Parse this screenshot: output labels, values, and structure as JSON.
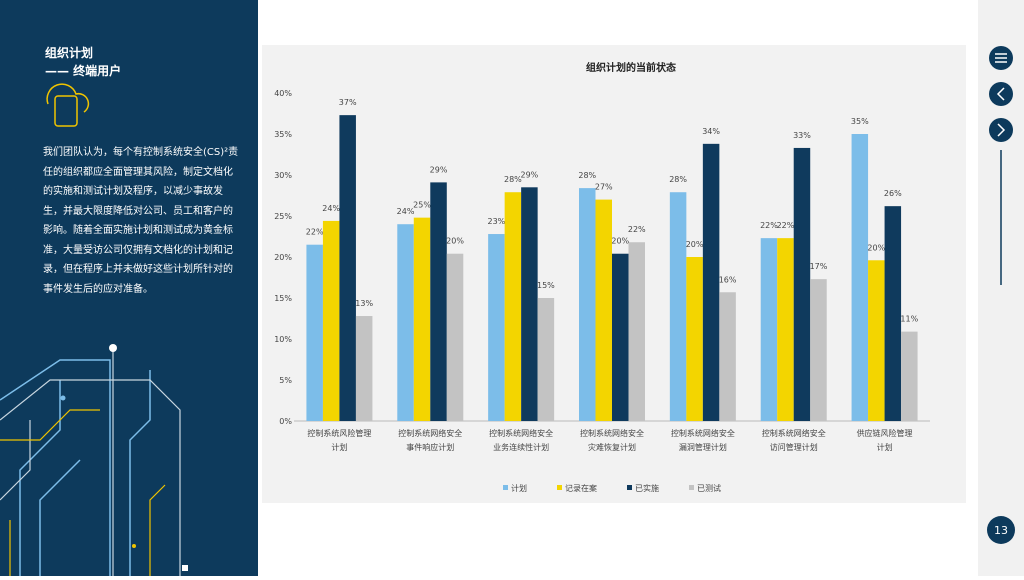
{
  "sidebar": {
    "title": "组织计划",
    "subtitle": "—— 终端用户",
    "body": "我们团队认为，每个有控制系统安全(CS)²责任的组织都应全面管理其风险，制定文档化的实施和测试计划及程序，以减少事故发生，并最大限度降低对公司、员工和客户的影响。随着全面实施计划和测试成为黄金标准，大量受访公司仅拥有文档化的计划和记录，但在程序上并未做好这些计划所针对的事件发生后的应对准备。"
  },
  "page_number": "13",
  "chart_data": {
    "type": "bar",
    "title": "组织计划的当前状态",
    "categories": [
      "控制系统风险管理\n计划",
      "控制系统网络安全\n事件响应计划",
      "控制系统网络安全\n业务连续性计划",
      "控制系统网络安全\n灾难恢复计划",
      "控制系统网络安全\n漏洞管理计划",
      "控制系统网络安全\n访问管理计划",
      "供应链风险管理\n计划"
    ],
    "series": [
      {
        "name": "计划",
        "color": "#7cbde9",
        "values": [
          21.5,
          24.0,
          22.8,
          28.4,
          27.9,
          22.3,
          35.0
        ],
        "value_labels": [
          "22%",
          "24%",
          "23%",
          "28%",
          "28%",
          "22%",
          "35%"
        ]
      },
      {
        "name": "记录在案",
        "color": "#f3d500",
        "values": [
          24.4,
          24.8,
          27.9,
          27.0,
          20.0,
          22.3,
          19.6
        ],
        "value_labels": [
          "24%",
          "25%",
          "28%",
          "27%",
          "20%",
          "22%",
          "20%"
        ]
      },
      {
        "name": "已实施",
        "color": "#0f3a5d",
        "values": [
          37.3,
          29.1,
          28.5,
          20.4,
          33.8,
          33.3,
          26.2
        ],
        "value_labels": [
          "37%",
          "29%",
          "29%",
          "20%",
          "34%",
          "33%",
          "26%"
        ]
      },
      {
        "name": "已测试",
        "color": "#c3c3c3",
        "values": [
          12.8,
          20.4,
          15.0,
          21.8,
          15.7,
          17.3,
          10.9
        ],
        "value_labels": [
          "13%",
          "20%",
          "15%",
          "22%",
          "16%",
          "17%",
          "11%"
        ]
      }
    ],
    "ylim": [
      0,
      40
    ],
    "yticks": [
      {
        "value": 0,
        "label": "0%"
      },
      {
        "value": 5,
        "label": "5%"
      },
      {
        "value": 10,
        "label": "10%"
      },
      {
        "value": 15,
        "label": "15%"
      },
      {
        "value": 20,
        "label": "20%"
      },
      {
        "value": 25,
        "label": "25%"
      },
      {
        "value": 30,
        "label": "30%"
      },
      {
        "value": 35,
        "label": "35%"
      },
      {
        "value": 40,
        "label": "40%"
      }
    ],
    "grid": false,
    "legend": "bottom"
  }
}
